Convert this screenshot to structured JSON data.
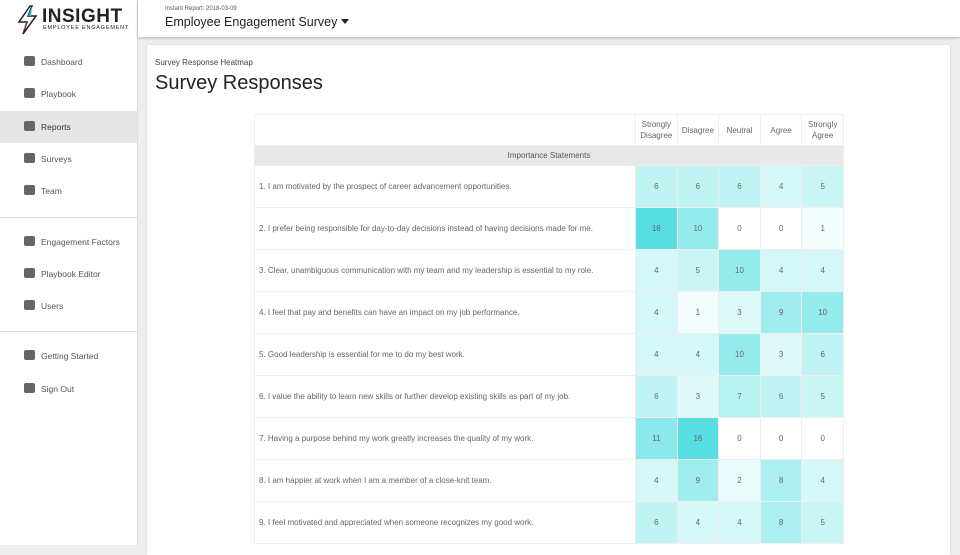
{
  "brand": {
    "name": "INSIGHT",
    "tagline": "EMPLOYEE ENGAGEMENT"
  },
  "nav": {
    "groups": [
      [
        "Dashboard",
        "Playbook",
        "Reports",
        "Surveys",
        "Team"
      ],
      [
        "Engagement Factors",
        "Playbook Editor",
        "Users"
      ],
      [
        "Getting Started",
        "Sign Out"
      ]
    ],
    "active": "Reports"
  },
  "header": {
    "subtitle": "Instant Report: 2018-03-09",
    "title": "Employee Engagement Survey"
  },
  "card": {
    "kicker": "Survey Response Heatmap",
    "title": "Survey Responses"
  },
  "table": {
    "columns": [
      "Strongly Disagree",
      "Disagree",
      "Neutral",
      "Agree",
      "Strongly Agree"
    ],
    "section": "Importance Statements",
    "rows": [
      {
        "statement": "1. I am motivated by the prospect of career advancement opportunities.",
        "values": [
          6,
          6,
          6,
          4,
          5
        ]
      },
      {
        "statement": "2. I prefer being responsible for day-to-day decisions instead of having decisions made for me.",
        "values": [
          16,
          10,
          0,
          0,
          1
        ]
      },
      {
        "statement": "3. Clear, unambiguous communication with my team and my leadership is essential to my role.",
        "values": [
          4,
          5,
          10,
          4,
          4
        ]
      },
      {
        "statement": "4. I feel that pay and benefits can have an impact on my job performance.",
        "values": [
          4,
          1,
          3,
          9,
          10
        ]
      },
      {
        "statement": "5. Good leadership is essential for me to do my best work.",
        "values": [
          4,
          4,
          10,
          3,
          6
        ]
      },
      {
        "statement": "6. I value the ability to learn new skills or further develop existing skills as part of my job.",
        "values": [
          6,
          3,
          7,
          6,
          5
        ]
      },
      {
        "statement": "7. Having a purpose behind my work greatly increases the quality of my work.",
        "values": [
          11,
          16,
          0,
          0,
          0
        ]
      },
      {
        "statement": "8. I am happier at work when I am a member of a close-knit team.",
        "values": [
          4,
          9,
          2,
          8,
          4
        ]
      },
      {
        "statement": "9. I feel motivated and appreciated when someone recognizes my good work.",
        "values": [
          6,
          4,
          4,
          8,
          5
        ]
      }
    ]
  }
}
